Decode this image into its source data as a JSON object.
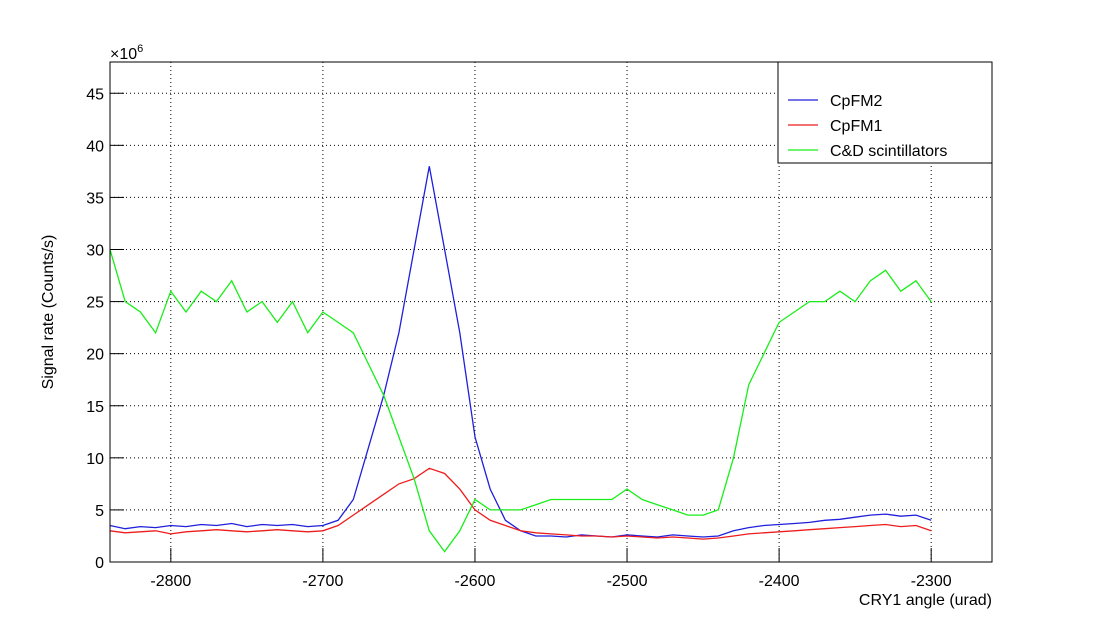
{
  "chart_data": {
    "type": "line",
    "x_label": "CRY1 angle (urad)",
    "y_label": "Signal rate (Counts/s)",
    "y_multiplier": {
      "base": "×10",
      "exponent": "6"
    },
    "x": [
      -2840,
      -2830,
      -2820,
      -2810,
      -2800,
      -2790,
      -2780,
      -2770,
      -2760,
      -2750,
      -2740,
      -2730,
      -2720,
      -2710,
      -2700,
      -2690,
      -2680,
      -2670,
      -2660,
      -2650,
      -2640,
      -2630,
      -2620,
      -2610,
      -2600,
      -2590,
      -2580,
      -2570,
      -2560,
      -2550,
      -2540,
      -2530,
      -2520,
      -2510,
      -2500,
      -2490,
      -2480,
      -2470,
      -2460,
      -2450,
      -2440,
      -2430,
      -2420,
      -2410,
      -2400,
      -2390,
      -2380,
      -2370,
      -2360,
      -2350,
      -2340,
      -2330,
      -2320,
      -2310,
      -2300
    ],
    "series": [
      {
        "name": "CpFM2",
        "color": "#1f1fdc",
        "values": [
          3.5,
          3.2,
          3.4,
          3.3,
          3.5,
          3.4,
          3.6,
          3.5,
          3.7,
          3.4,
          3.6,
          3.5,
          3.6,
          3.4,
          3.5,
          4,
          6,
          11,
          16,
          22,
          30,
          38,
          30,
          22,
          12,
          7,
          4,
          3,
          2.5,
          2.5,
          2.4,
          2.6,
          2.5,
          2.4,
          2.6,
          2.5,
          2.4,
          2.6,
          2.5,
          2.4,
          2.5,
          3,
          3.3,
          3.5,
          3.6,
          3.7,
          3.8,
          4,
          4.1,
          4.3,
          4.5,
          4.6,
          4.4,
          4.5,
          4
        ]
      },
      {
        "name": "CpFM1",
        "color": "#ee1c1c",
        "values": [
          3,
          2.8,
          2.9,
          3,
          2.7,
          2.9,
          3,
          3.1,
          3,
          2.9,
          3,
          3.1,
          3,
          2.9,
          3,
          3.5,
          4.5,
          5.5,
          6.5,
          7.5,
          8,
          9,
          8.5,
          7,
          5,
          4,
          3.5,
          3,
          2.8,
          2.7,
          2.6,
          2.5,
          2.5,
          2.4,
          2.5,
          2.4,
          2.3,
          2.4,
          2.3,
          2.2,
          2.3,
          2.5,
          2.7,
          2.8,
          2.9,
          3,
          3.1,
          3.2,
          3.3,
          3.4,
          3.5,
          3.6,
          3.4,
          3.5,
          3
        ]
      },
      {
        "name": "C&D scintillators",
        "color": "#19ee19",
        "values": [
          30,
          25,
          24,
          22,
          26,
          24,
          26,
          25,
          27,
          24,
          25,
          23,
          25,
          22,
          24,
          23,
          22,
          19,
          16,
          12,
          8,
          3,
          1,
          3,
          6,
          5,
          5,
          5,
          5.5,
          6,
          6,
          6,
          6,
          6,
          7,
          6,
          5.5,
          5,
          4.5,
          4.5,
          5,
          10,
          17,
          20,
          23,
          24,
          25,
          25,
          26,
          25,
          27,
          28,
          26,
          27,
          25
        ]
      }
    ],
    "xlim": [
      -2840,
      -2260
    ],
    "xticks": [
      -2800,
      -2700,
      -2600,
      -2500,
      -2400,
      -2300
    ],
    "ylim": [
      0,
      48
    ],
    "yticks": [
      0,
      5,
      10,
      15,
      20,
      25,
      30,
      35,
      40,
      45
    ],
    "grid": true,
    "legend": "top-right"
  }
}
